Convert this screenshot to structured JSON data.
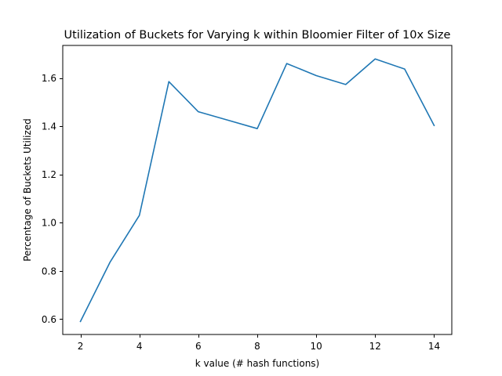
{
  "chart_data": {
    "type": "line",
    "title": "Utilization of Buckets for Varying k within Bloomier Filter of 10x Size",
    "xlabel": "k value (# hash functions)",
    "ylabel": "Percentage of Buckets Utilized",
    "xlim": [
      1.4,
      14.6
    ],
    "ylim": [
      0.536,
      1.735
    ],
    "xticks": [
      2,
      4,
      6,
      8,
      10,
      12,
      14
    ],
    "xtick_labels": [
      "2",
      "4",
      "6",
      "8",
      "10",
      "12",
      "14"
    ],
    "yticks": [
      0.6,
      0.8,
      1.0,
      1.2,
      1.4,
      1.6
    ],
    "ytick_labels": [
      "0.6",
      "0.8",
      "1.0",
      "1.2",
      "1.4",
      "1.6"
    ],
    "grid": false,
    "series": [
      {
        "color": "#1f77b4",
        "x": [
          2,
          3,
          4,
          5,
          6,
          7,
          8,
          9,
          10,
          11,
          12,
          13,
          14
        ],
        "y": [
          0.59,
          0.835,
          1.03,
          1.585,
          1.46,
          1.425,
          1.39,
          1.66,
          1.61,
          1.573,
          1.679,
          1.637,
          1.403
        ]
      }
    ]
  }
}
